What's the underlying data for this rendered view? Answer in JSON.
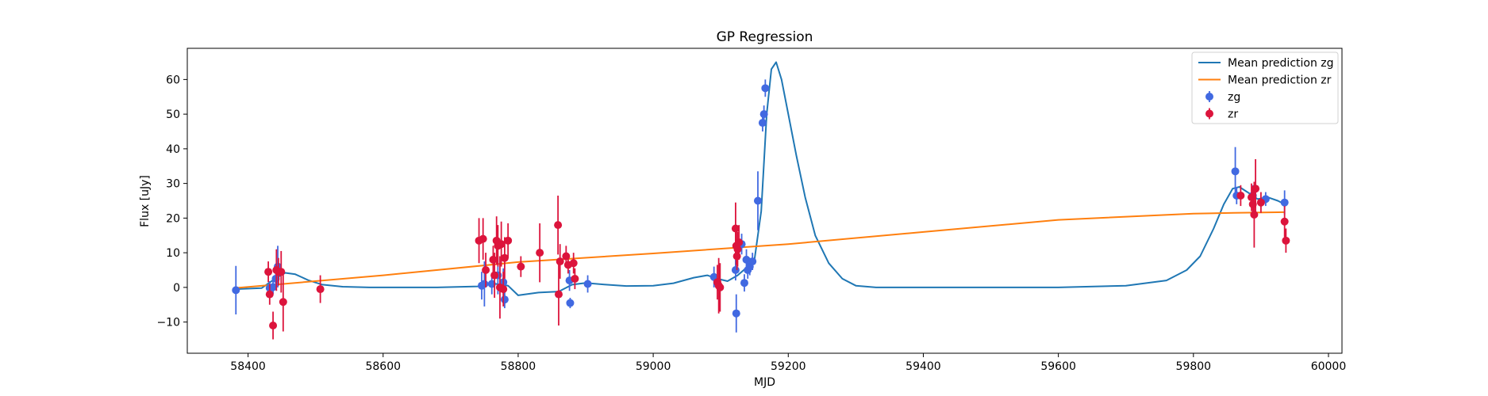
{
  "chart_data": {
    "type": "scatter",
    "title": "GP Regression",
    "xlabel": "MJD",
    "ylabel": "Flux [uJy]",
    "xlim": [
      58310,
      60020
    ],
    "ylim": [
      -19,
      69
    ],
    "xticks": [
      58400,
      58600,
      58800,
      59000,
      59200,
      59400,
      59600,
      59800,
      60000
    ],
    "yticks": [
      -10,
      0,
      10,
      20,
      30,
      40,
      50,
      60
    ],
    "legend_position": "upper right",
    "series": [
      {
        "name": "Mean prediction zg",
        "kind": "line",
        "color": "#1f77b4",
        "x": [
          58380,
          58420,
          58440,
          58455,
          58470,
          58490,
          58510,
          58540,
          58580,
          58620,
          58680,
          58740,
          58760,
          58785,
          58800,
          58830,
          58860,
          58880,
          58900,
          58930,
          58960,
          59000,
          59030,
          59060,
          59080,
          59095,
          59110,
          59125,
          59140,
          59150,
          59160,
          59168,
          59175,
          59182,
          59190,
          59200,
          59212,
          59225,
          59240,
          59260,
          59280,
          59300,
          59330,
          59360,
          59400,
          59600,
          59700,
          59760,
          59790,
          59810,
          59830,
          59845,
          59858,
          59868,
          59880,
          59895,
          59910,
          59925,
          59935
        ],
        "y": [
          -0.5,
          -0.2,
          2.5,
          4.2,
          3.8,
          2,
          0.8,
          0.2,
          0,
          0,
          0,
          0.3,
          1.2,
          0.5,
          -2.3,
          -1.5,
          -1.2,
          0.8,
          1.3,
          0.8,
          0.4,
          0.5,
          1.2,
          2.8,
          3.5,
          2.5,
          1.8,
          3.5,
          6,
          8,
          22,
          50,
          63,
          65,
          60,
          50,
          38,
          26,
          15,
          7,
          2.5,
          0.5,
          0,
          0,
          0,
          0,
          0.5,
          2,
          5,
          9,
          17,
          24,
          28.5,
          29,
          27.5,
          25.5,
          26,
          25,
          24
        ]
      },
      {
        "name": "Mean prediction zr",
        "kind": "line",
        "color": "#ff7f0e",
        "x": [
          58380,
          58600,
          58800,
          59000,
          59200,
          59400,
          59600,
          59800,
          59860,
          59935
        ],
        "y": [
          -0.2,
          3.5,
          7.3,
          9.8,
          12.5,
          16,
          19.5,
          21.3,
          21.5,
          21.7
        ]
      },
      {
        "name": "zg",
        "kind": "errorbar",
        "color": "#4169e1",
        "x": [
          58382,
          58432,
          58437,
          58441,
          58444,
          58746,
          58750,
          58761,
          58770,
          58778,
          58780,
          58876,
          58877,
          58903,
          59090,
          59122,
          59123,
          59131,
          59135,
          59138,
          59140,
          59143,
          59147,
          59155,
          59162,
          59164,
          59166,
          59862,
          59864,
          59888,
          59907,
          59935
        ],
        "y": [
          -0.8,
          -0.2,
          0.1,
          2.5,
          6,
          0.5,
          1,
          1,
          3.5,
          1.5,
          -3.5,
          2,
          -4.5,
          1,
          3,
          5,
          -7.5,
          12.5,
          1.3,
          8,
          5,
          6,
          7.5,
          25,
          47.5,
          50,
          57.5,
          33.5,
          26.5,
          26.5,
          25.5,
          24.5
        ],
        "yerr": [
          7,
          2,
          2,
          2.5,
          6,
          4,
          6.5,
          3,
          5.5,
          4,
          2.5,
          3,
          1.5,
          2.5,
          3,
          3,
          5.5,
          3,
          2.5,
          3,
          2.5,
          2.5,
          2.5,
          8.5,
          2.5,
          2.5,
          2.5,
          7,
          2.5,
          3,
          2,
          3.5
        ]
      },
      {
        "name": "zr",
        "kind": "errorbar",
        "color": "#dc143c",
        "x": [
          58430,
          58432,
          58437,
          58442,
          58445,
          58449,
          58452,
          58507,
          58742,
          58748,
          58752,
          58763,
          58765,
          58768,
          58770,
          58773,
          58775,
          58778,
          58780,
          58785,
          58804,
          58832,
          58859,
          58860,
          58862,
          58871,
          58874,
          58882,
          58884,
          59095,
          59097,
          59099,
          59122,
          59123,
          59124,
          59125,
          59127,
          59870,
          59886,
          59888,
          59890,
          59892,
          59900,
          59935,
          59937
        ],
        "y": [
          4.5,
          -2,
          -11,
          5,
          4.5,
          4.5,
          -4.2,
          -0.5,
          13.5,
          14,
          5,
          8,
          3.5,
          13.5,
          12,
          0,
          12.5,
          -0.5,
          8.5,
          13.5,
          6,
          10,
          18,
          -2,
          7.5,
          9,
          6.5,
          7,
          2.5,
          1.5,
          0.5,
          0,
          17,
          12,
          9,
          11,
          13,
          26.5,
          26,
          24,
          21,
          28.5,
          24.5,
          19,
          13.5
        ],
        "yerr": [
          3,
          3,
          4,
          6,
          4,
          6,
          8.5,
          4,
          6.5,
          6,
          5,
          4,
          6.5,
          7,
          6,
          9,
          6.5,
          5,
          6,
          5,
          3,
          8.5,
          8.5,
          9,
          5,
          3,
          2.5,
          3,
          3,
          5,
          8,
          7,
          7.5,
          5.5,
          4,
          5,
          5,
          3,
          4,
          4,
          9.5,
          8.5,
          3,
          4.5,
          3.5
        ]
      }
    ]
  }
}
